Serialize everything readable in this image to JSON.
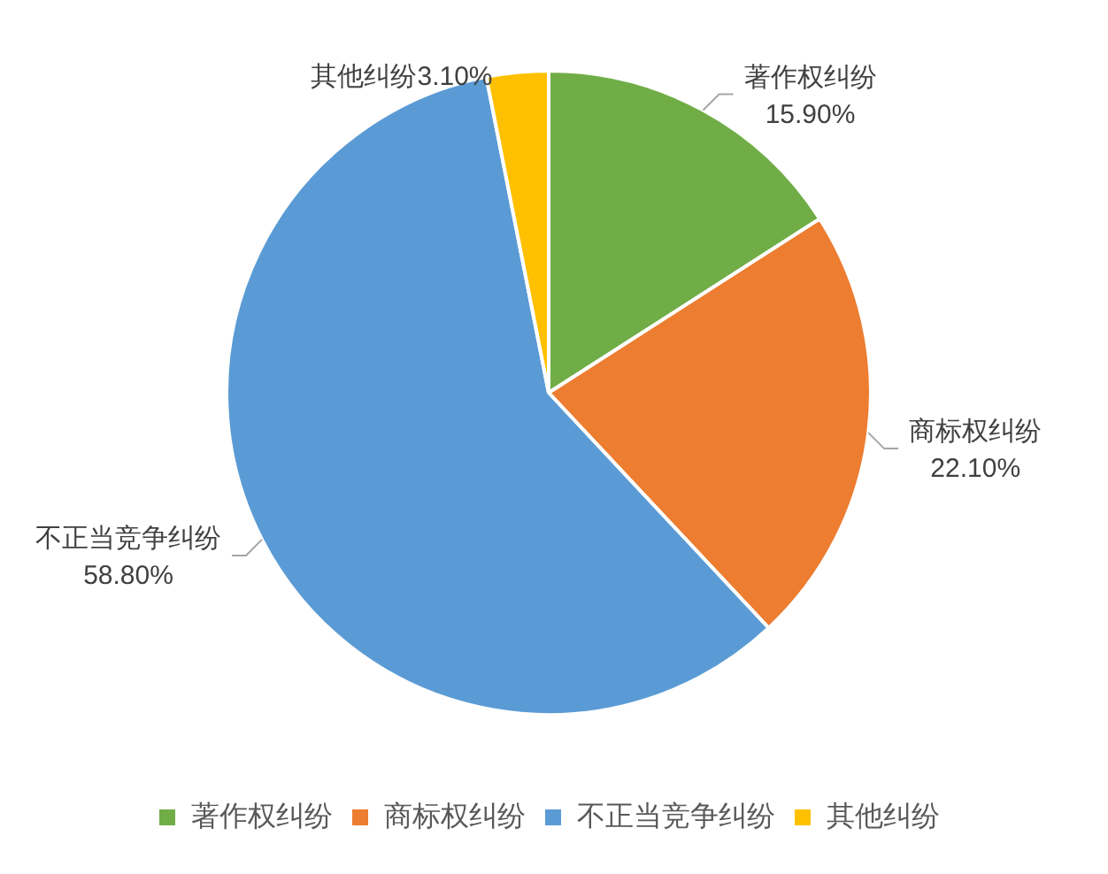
{
  "chart_data": {
    "type": "pie",
    "categories": [
      "著作权纠纷",
      "商标权纠纷",
      "不正当竞争纠纷",
      "其他纠纷"
    ],
    "values": [
      15.9,
      22.1,
      58.8,
      3.1
    ],
    "value_labels": [
      "15.90%",
      "22.10%",
      "58.80%",
      "3.10%"
    ],
    "colors": [
      "#70ad47",
      "#ed7d31",
      "#5b9bd5",
      "#ffc000"
    ],
    "legend": "bottom"
  }
}
